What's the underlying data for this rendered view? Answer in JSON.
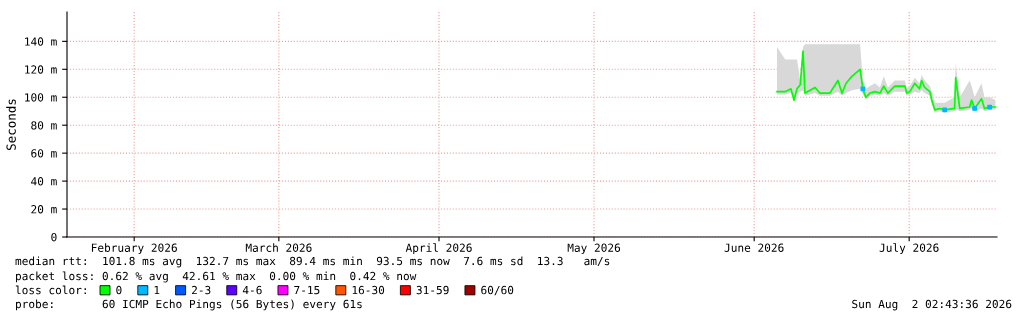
{
  "chart_data": {
    "type": "line",
    "ylabel": "Seconds",
    "xlim": [
      "2026-01-19",
      "2026-07-18"
    ],
    "xticks": [
      {
        "value": "2026-02-01",
        "label": "February 2026"
      },
      {
        "value": "2026-03-01",
        "label": "March 2026"
      },
      {
        "value": "2026-04-01",
        "label": "April 2026"
      },
      {
        "value": "2026-05-01",
        "label": "May 2026"
      },
      {
        "value": "2026-06-01",
        "label": "June 2026"
      },
      {
        "value": "2026-07-01",
        "label": "July 2026"
      }
    ],
    "ylim": [
      0,
      161
    ],
    "yticks": [
      {
        "value": 0,
        "label": "0"
      },
      {
        "value": 20,
        "label": "20 m"
      },
      {
        "value": 40,
        "label": "40 m"
      },
      {
        "value": 60,
        "label": "60 m"
      },
      {
        "value": 80,
        "label": "80 m"
      },
      {
        "value": 100,
        "label": "100 m"
      },
      {
        "value": 120,
        "label": "120 m"
      },
      {
        "value": 140,
        "label": "140 m"
      }
    ],
    "grid": true,
    "legend": "bottom",
    "legend_title": "loss color:",
    "series": [
      {
        "name": "0",
        "color": "#00ff00",
        "x": [
          "2026-06-05T10:00",
          "2026-06-07T00:00",
          "2026-06-08T03:00",
          "2026-06-08T17:00",
          "2026-06-09T07:00",
          "2026-06-09T22:00",
          "2026-06-10T11:00",
          "2026-06-10T20:00",
          "2026-06-12T19:00",
          "2026-06-13T17:00",
          "2026-06-15T16:00",
          "2026-06-17T05:00",
          "2026-06-18T00:00",
          "2026-06-18T19:00",
          "2026-06-19T22:00",
          "2026-06-21T12:00",
          "2026-06-22T01:00",
          "2026-06-22T15:00",
          "2026-06-23T10:00",
          "2026-06-24T09:00",
          "2026-06-25T08:00",
          "2026-06-26T02:00",
          "2026-06-26T21:00",
          "2026-06-28T05:00",
          "2026-06-30T04:00",
          "2026-06-30T13:00",
          "2026-07-01T03:00",
          "2026-07-02T02:00",
          "2026-07-03T00:00",
          "2026-07-03T10:00",
          "2026-07-04T00:00",
          "2026-07-05T00:00",
          "2026-07-05T09:00",
          "2026-07-05T23:00",
          "2026-07-06T22:00",
          "2026-07-07T21:00",
          "2026-07-09T19:00",
          "2026-07-10T00:00",
          "2026-07-10T19:00",
          "2026-07-12T17:00",
          "2026-07-13T02:00",
          "2026-07-13T16:00",
          "2026-07-15T00:00",
          "2026-07-15T14:00",
          "2026-07-16T14:00",
          "2026-07-17T17:00"
        ],
        "values": [
          104,
          104,
          106,
          98,
          106,
          109,
          133,
          103,
          107,
          103,
          103,
          112,
          103,
          110,
          115,
          120,
          106,
          100,
          103,
          104,
          103,
          108,
          103,
          108,
          108,
          103,
          104,
          110,
          106,
          112,
          107,
          104,
          98,
          91,
          92,
          91,
          92,
          114,
          92,
          93,
          98,
          92,
          99,
          92,
          93,
          93
        ],
        "lower": [
          102,
          102,
          103,
          96,
          103,
          104,
          105,
          101,
          103,
          101,
          101,
          104,
          101,
          103,
          105,
          106,
          102,
          98,
          101,
          102,
          101,
          103,
          101,
          104,
          104,
          101,
          102,
          104,
          103,
          105,
          103,
          101,
          95,
          89,
          90,
          89,
          90,
          92,
          90,
          91,
          92,
          90,
          92,
          90,
          91,
          91
        ],
        "upper": [
          136,
          127,
          127,
          127,
          127,
          112,
          136,
          138,
          138,
          138,
          138,
          138,
          138,
          138,
          138,
          138,
          112,
          106,
          108,
          110,
          107,
          115,
          107,
          112,
          112,
          106,
          108,
          114,
          110,
          116,
          112,
          108,
          104,
          96,
          96,
          96,
          100,
          124,
          100,
          112,
          108,
          100,
          110,
          100,
          100,
          98
        ]
      },
      {
        "name": "1",
        "color": "#00b8ff",
        "type": "scatter",
        "x": [
          "2026-06-22T01:00",
          "2026-07-07T21:00",
          "2026-07-13T16:00",
          "2026-07-16T14:00"
        ],
        "values": [
          106,
          91,
          92,
          93
        ]
      },
      {
        "name": "2-3",
        "color": "#0059ff",
        "type": "scatter"
      },
      {
        "name": "4-6",
        "color": "#5e00ff",
        "type": "scatter"
      },
      {
        "name": "7-15",
        "color": "#ff00fe",
        "type": "scatter"
      },
      {
        "name": "16-30",
        "color": "#ff5500",
        "type": "scatter"
      },
      {
        "name": "31-59",
        "color": "#ff0000",
        "type": "scatter"
      },
      {
        "name": "60/60",
        "color": "#a10000",
        "type": "scatter"
      }
    ],
    "annotations": [
      "median rtt:  101.8 ms avg  132.7 ms max  89.4 ms min  93.5 ms now  7.6 ms sd  13.3   am/s",
      "packet loss: 0.62 % avg  42.61 % max  0.00 % min  0.42 % now",
      "probe:       60 ICMP Echo Pings (56 Bytes) every 61s",
      "Sun Aug  2 02:43:36 2026"
    ]
  }
}
